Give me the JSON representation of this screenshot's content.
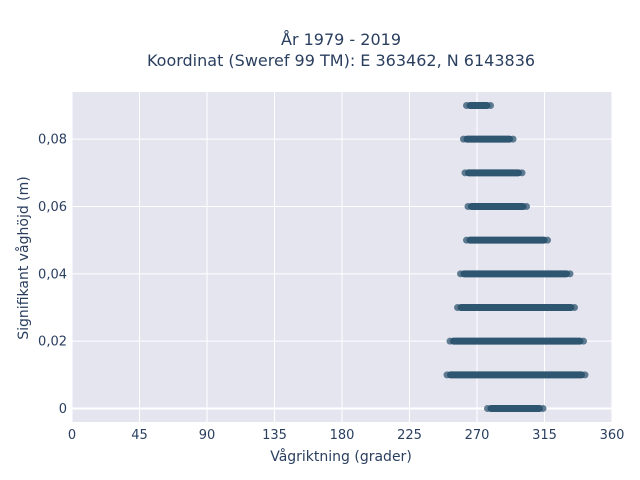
{
  "chart_data": {
    "type": "scatter",
    "title_line1": "År 1979 - 2019",
    "title_line2": "Koordinat (Sweref 99 TM): E 363462, N 6143836",
    "xlabel": "Vågriktning (grader)",
    "ylabel": "Signifikant våghöjd (m)",
    "xlim": [
      0,
      360
    ],
    "ylim": [
      -0.004,
      0.094
    ],
    "x_ticks": [
      0,
      45,
      90,
      135,
      180,
      225,
      270,
      315,
      360
    ],
    "x_tick_labels": [
      "0",
      "45",
      "90",
      "135",
      "180",
      "225",
      "270",
      "315",
      "360"
    ],
    "y_ticks": [
      0,
      0.02,
      0.04,
      0.06,
      0.08
    ],
    "y_tick_labels": [
      "0",
      "0,02",
      "0,04",
      "0,06",
      "0,08"
    ],
    "grid": true,
    "background": "#e5e5f0",
    "marker_color": "#2f5670",
    "bands": [
      {
        "y": 0.0,
        "x_min": 277,
        "x_max": 314
      },
      {
        "y": 0.01,
        "x_min": 250,
        "x_max": 342
      },
      {
        "y": 0.02,
        "x_min": 252,
        "x_max": 341
      },
      {
        "y": 0.03,
        "x_min": 257,
        "x_max": 335
      },
      {
        "y": 0.04,
        "x_min": 259,
        "x_max": 332
      },
      {
        "y": 0.05,
        "x_min": 263,
        "x_max": 317
      },
      {
        "y": 0.06,
        "x_min": 264,
        "x_max": 303
      },
      {
        "y": 0.07,
        "x_min": 262,
        "x_max": 300
      },
      {
        "y": 0.08,
        "x_min": 261,
        "x_max": 294
      },
      {
        "y": 0.09,
        "x_min": 263,
        "x_max": 279
      }
    ]
  }
}
